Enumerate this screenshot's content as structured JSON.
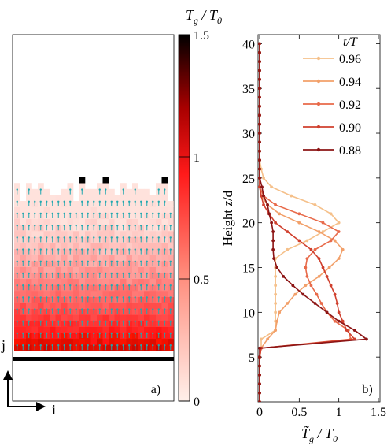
{
  "panel_a": {
    "colorbar": {
      "title_main": "T",
      "title_sub": "g",
      "title_rest": " / T",
      "title_sub2": "0",
      "ticks": [
        "0",
        "0.5",
        "1",
        "1.5"
      ],
      "range": [
        0,
        1.5
      ]
    },
    "label": "a)",
    "axis_j": "j",
    "axis_i": "i"
  },
  "chart_data": {
    "type": "line",
    "panel_label": "b)",
    "xlabel_main": "T̃",
    "xlabel_sub": "g",
    "xlabel_rest": " / T",
    "xlabel_sub2": "0",
    "ylabel": "Height  z/d",
    "xlim": [
      0,
      1.5
    ],
    "ylim": [
      0,
      41
    ],
    "xticks": [
      "0",
      "0.5",
      "1",
      "1.5"
    ],
    "yticks": [
      "5",
      "10",
      "15",
      "20",
      "25",
      "30",
      "35",
      "40"
    ],
    "legend_title": "t/T",
    "legend_position": "top-right",
    "series": [
      {
        "name": "0.96",
        "color": "#f5c08a",
        "x": [
          0,
          0,
          0,
          0,
          0,
          0,
          0.02,
          0.02,
          0.2,
          0.2,
          0.2,
          0.2,
          0.2,
          0.2,
          0.2,
          0.2,
          0.2,
          0.35,
          0.6,
          0.8,
          1.0,
          0.9,
          0.7,
          0.4,
          0.15,
          0.05,
          0.02,
          0,
          0,
          0,
          0,
          0,
          0,
          0,
          0,
          0,
          0,
          0,
          0,
          0,
          0
        ],
        "y": [
          0,
          1,
          2,
          3,
          4,
          5,
          6,
          7,
          8,
          9,
          10,
          11,
          12,
          13,
          14,
          15,
          16,
          17,
          18,
          19,
          20,
          21,
          22,
          23,
          24,
          25,
          26,
          27,
          28,
          29,
          30,
          31,
          32,
          33,
          34,
          35,
          36,
          37,
          38,
          39,
          40
        ]
      },
      {
        "name": "0.94",
        "color": "#f2a06a",
        "x": [
          0,
          0,
          0,
          0,
          0,
          0,
          0.02,
          0.1,
          0.2,
          0.22,
          0.25,
          0.35,
          0.45,
          0.58,
          0.75,
          0.88,
          1.0,
          1.05,
          0.95,
          0.75,
          0.5,
          0.25,
          0.1,
          0.02,
          0,
          0,
          0,
          0,
          0,
          0,
          0,
          0,
          0,
          0,
          0,
          0,
          0,
          0,
          0,
          0,
          0
        ],
        "y": [
          0,
          1,
          2,
          3,
          4,
          5,
          6,
          7,
          8,
          9,
          10,
          11,
          12,
          13,
          14,
          15,
          16,
          17,
          18,
          19,
          20,
          21,
          22,
          23,
          24,
          25,
          26,
          27,
          28,
          29,
          30,
          31,
          32,
          33,
          34,
          35,
          36,
          37,
          38,
          39,
          40
        ]
      },
      {
        "name": "0.92",
        "color": "#e86a4a",
        "x": [
          0,
          0,
          0,
          0,
          0,
          0,
          0.02,
          1.15,
          1.12,
          0.95,
          0.85,
          0.78,
          0.72,
          0.65,
          0.6,
          0.58,
          0.6,
          0.7,
          0.9,
          1.0,
          0.8,
          0.5,
          0.2,
          0.05,
          0,
          0,
          0,
          0,
          0,
          0,
          0,
          0,
          0,
          0,
          0,
          0,
          0,
          0,
          0,
          0,
          0
        ],
        "y": [
          0,
          1,
          2,
          3,
          4,
          5,
          6,
          7,
          8,
          9,
          10,
          11,
          12,
          13,
          14,
          15,
          16,
          17,
          18,
          19,
          20,
          21,
          22,
          23,
          24,
          25,
          26,
          27,
          28,
          29,
          30,
          31,
          32,
          33,
          34,
          35,
          36,
          37,
          38,
          39,
          40
        ]
      },
      {
        "name": "0.90",
        "color": "#d0402e",
        "x": [
          0,
          0,
          0,
          0,
          0,
          0,
          0.02,
          1.2,
          1.1,
          1.05,
          1.0,
          0.98,
          0.95,
          0.9,
          0.85,
          0.8,
          0.75,
          0.65,
          0.5,
          0.35,
          0.2,
          0.12,
          0.05,
          0.02,
          0,
          0,
          0,
          0,
          0,
          0,
          0,
          0,
          0,
          0,
          0,
          0,
          0,
          0,
          0,
          0,
          0
        ],
        "y": [
          0,
          1,
          2,
          3,
          4,
          5,
          6,
          7,
          8,
          9,
          10,
          11,
          12,
          13,
          14,
          15,
          16,
          17,
          18,
          19,
          20,
          21,
          22,
          23,
          24,
          25,
          26,
          27,
          28,
          29,
          30,
          31,
          32,
          33,
          34,
          35,
          36,
          37,
          38,
          39,
          40
        ]
      },
      {
        "name": "0.88",
        "color": "#8c1414",
        "x": [
          0,
          0,
          0,
          0,
          0,
          0,
          0,
          1.35,
          1.2,
          1.0,
          0.85,
          0.7,
          0.55,
          0.42,
          0.3,
          0.22,
          0.18,
          0.17,
          0.17,
          0.17,
          0.15,
          0.12,
          0.1,
          0.05,
          0.03,
          0,
          0,
          0,
          0,
          0,
          0,
          0,
          0,
          0,
          0,
          0,
          0,
          0,
          0,
          0,
          0
        ],
        "y": [
          0,
          1,
          2,
          3,
          4,
          5,
          6,
          7,
          8,
          9,
          10,
          11,
          12,
          13,
          14,
          15,
          16,
          17,
          18,
          19,
          20,
          21,
          22,
          23,
          24,
          25,
          26,
          27,
          28,
          29,
          30,
          31,
          32,
          33,
          34,
          35,
          36,
          37,
          38,
          39,
          40
        ]
      }
    ]
  }
}
